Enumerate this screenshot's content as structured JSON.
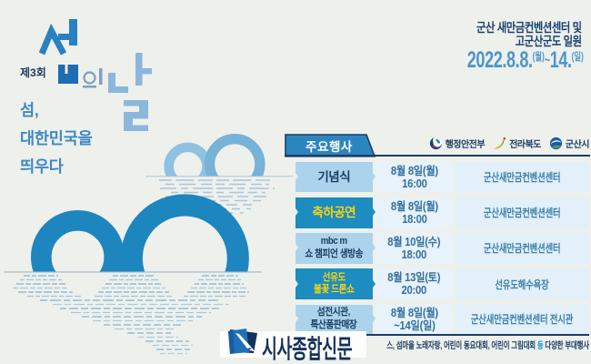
{
  "colors": {
    "background": "#eef0ec",
    "primary_blue": "#1e86be",
    "highlight_row_blue": "#1d8cc1",
    "light_blue_cell": "#abd4ec",
    "pale_blue_cell": "#e7f2fa",
    "navy": "#1d3c60",
    "yellow_text": "#fbd40e",
    "date_blue": "#4d95ca",
    "watermark_navy": "#14325c"
  },
  "header": {
    "edition": "제3회",
    "title": "섬의날",
    "title_syllables": [
      "섬",
      "의",
      "날"
    ],
    "tagline_lines": [
      "섬,",
      "대한민국을",
      "띄우다"
    ],
    "venue_line1": "군산 새만금컨벤션센터 및",
    "venue_line2": "고군산군도 일원",
    "date_parts": {
      "main": "2022.8.8.",
      "start_day": "(월)",
      "separator": "~",
      "end": "14.",
      "end_day": "(일)"
    }
  },
  "schedule": {
    "title": "주요행사",
    "organizers": [
      {
        "name": "행정안전부"
      },
      {
        "name": "전라북도"
      },
      {
        "name": "군산시"
      }
    ],
    "rows": [
      {
        "event_lines": [
          "기념식"
        ],
        "date_lines": [
          "8월 8일(월)",
          "16:00"
        ],
        "venue": "군산새만금컨벤션센터",
        "highlight": false
      },
      {
        "event_lines": [
          "축하공연"
        ],
        "date_lines": [
          "8월 8일(월)",
          "18:00"
        ],
        "venue": "군산새만금컨벤션센터",
        "highlight": true
      },
      {
        "event_lines": [
          "mbc m",
          "쇼 챔피언 생방송"
        ],
        "date_lines": [
          "8월 10일(수)",
          "18:00"
        ],
        "venue": "군산새만금컨벤션센터",
        "highlight": false
      },
      {
        "event_lines": [
          "선유도",
          "불꽃 드론쇼"
        ],
        "date_lines": [
          "8월 13일(토)",
          "20:00"
        ],
        "venue": "선유도해수욕장",
        "highlight": true
      },
      {
        "event_lines": [
          "섬전시관,",
          "특산품판매장"
        ],
        "date_lines": [
          "8월 8일(월)",
          "~14일(일)"
        ],
        "venue": "군산새만금컨벤션센터 전시관",
        "highlight": false
      }
    ],
    "footnote": {
      "visible_prefix": "스, 섬마을 노래자랑, 어린이 동요대회, 어린이 그림대회 ",
      "highlight_word": "등",
      "suffix": " 다양한 부대행사"
    }
  },
  "watermark": {
    "text": "시사종합신문"
  }
}
